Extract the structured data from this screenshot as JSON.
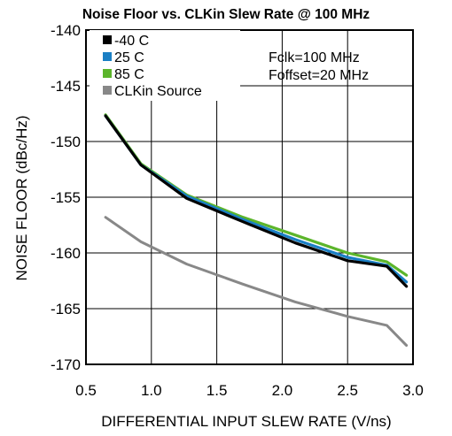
{
  "chart_data": {
    "type": "line",
    "title": "Noise Floor vs. CLKin Slew Rate @ 100 MHz",
    "xlabel": "DIFFERENTIAL INPUT SLEW RATE (V/ns)",
    "ylabel": "NOISE FLOOR (dBc/Hz)",
    "xlim": [
      0.5,
      3.0
    ],
    "ylim": [
      -170,
      -140
    ],
    "xticks": [
      "0.5",
      "1.0",
      "1.5",
      "2.0",
      "2.5",
      "3.0"
    ],
    "yticks": [
      "-140",
      "-145",
      "-150",
      "-155",
      "-160",
      "-165",
      "-170"
    ],
    "grid": true,
    "legend_position": "top-left",
    "annotations": [
      "Fclk=100 MHz",
      "Foffset=20 MHz"
    ],
    "series": [
      {
        "name": "-40 C",
        "color": "#000000",
        "x": [
          0.65,
          0.92,
          1.27,
          1.7,
          2.1,
          2.5,
          2.8,
          2.95
        ],
        "y": [
          -147.7,
          -152.1,
          -155.1,
          -157.2,
          -159.1,
          -160.7,
          -161.2,
          -163.0
        ]
      },
      {
        "name": "25 C",
        "color": "#1a7fc4",
        "x": [
          0.65,
          0.92,
          1.27,
          1.7,
          2.1,
          2.5,
          2.8,
          2.95
        ],
        "y": [
          -147.7,
          -152.1,
          -154.9,
          -157.0,
          -158.8,
          -160.4,
          -161.1,
          -162.6
        ]
      },
      {
        "name": "85 C",
        "color": "#5cb52b",
        "x": [
          0.65,
          0.92,
          1.27,
          1.7,
          2.1,
          2.5,
          2.8,
          2.95
        ],
        "y": [
          -147.6,
          -152.0,
          -154.8,
          -156.8,
          -158.4,
          -160.0,
          -160.8,
          -162.0
        ]
      },
      {
        "name": "CLKin Source",
        "color": "#888888",
        "x": [
          0.65,
          0.92,
          1.27,
          1.7,
          2.1,
          2.5,
          2.8,
          2.95
        ],
        "y": [
          -156.8,
          -159.0,
          -161.0,
          -162.8,
          -164.4,
          -165.7,
          -166.5,
          -168.3
        ]
      }
    ]
  }
}
